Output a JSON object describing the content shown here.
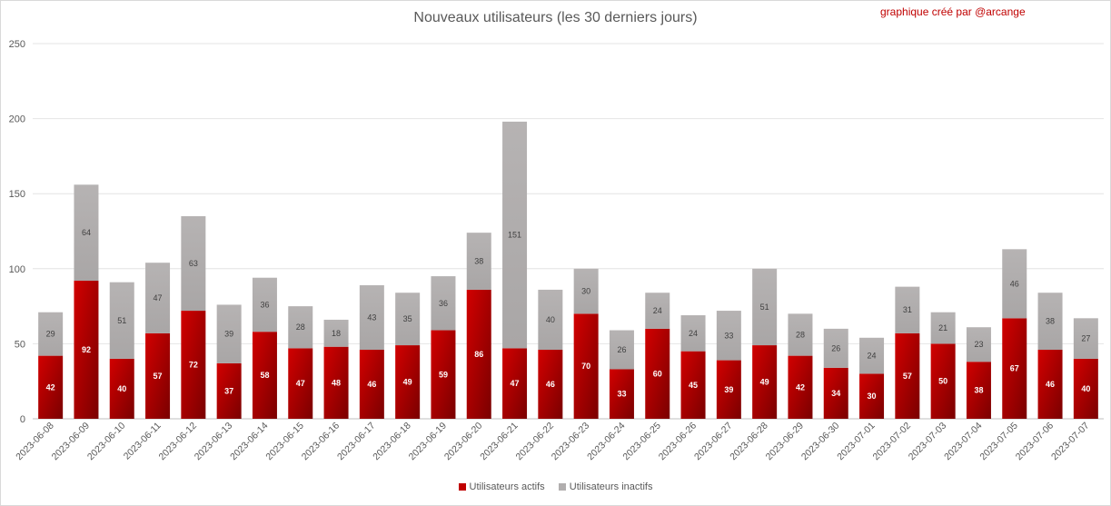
{
  "chart_data": {
    "type": "bar",
    "stacked": true,
    "title": "Nouveaux utilisateurs  (les 30 derniers  jours)",
    "credit": "graphique créé par @arcange",
    "ylim": [
      0,
      250
    ],
    "yticks": [
      0,
      50,
      100,
      150,
      200,
      250
    ],
    "grid": true,
    "legend_position": "bottom",
    "categories": [
      "2023-06-08",
      "2023-06-09",
      "2023-06-10",
      "2023-06-11",
      "2023-06-12",
      "2023-06-13",
      "2023-06-14",
      "2023-06-15",
      "2023-06-16",
      "2023-06-17",
      "2023-06-18",
      "2023-06-19",
      "2023-06-20",
      "2023-06-21",
      "2023-06-22",
      "2023-06-23",
      "2023-06-24",
      "2023-06-25",
      "2023-06-26",
      "2023-06-27",
      "2023-06-28",
      "2023-06-29",
      "2023-06-30",
      "2023-07-01",
      "2023-07-02",
      "2023-07-03",
      "2023-07-04",
      "2023-07-05",
      "2023-07-06",
      "2023-07-07"
    ],
    "series": [
      {
        "name": "Utilisateurs actifs",
        "color": "#c00000",
        "values": [
          42,
          92,
          40,
          57,
          72,
          37,
          58,
          47,
          48,
          46,
          49,
          59,
          86,
          47,
          46,
          70,
          33,
          60,
          45,
          39,
          49,
          42,
          34,
          30,
          57,
          50,
          38,
          67,
          46,
          40
        ]
      },
      {
        "name": "Utilisateurs inactifs",
        "color": "#b1aeae",
        "values": [
          29,
          64,
          51,
          47,
          63,
          39,
          36,
          28,
          18,
          43,
          35,
          36,
          38,
          151,
          40,
          30,
          26,
          24,
          24,
          33,
          51,
          28,
          26,
          24,
          31,
          21,
          23,
          46,
          38,
          27
        ]
      }
    ]
  }
}
